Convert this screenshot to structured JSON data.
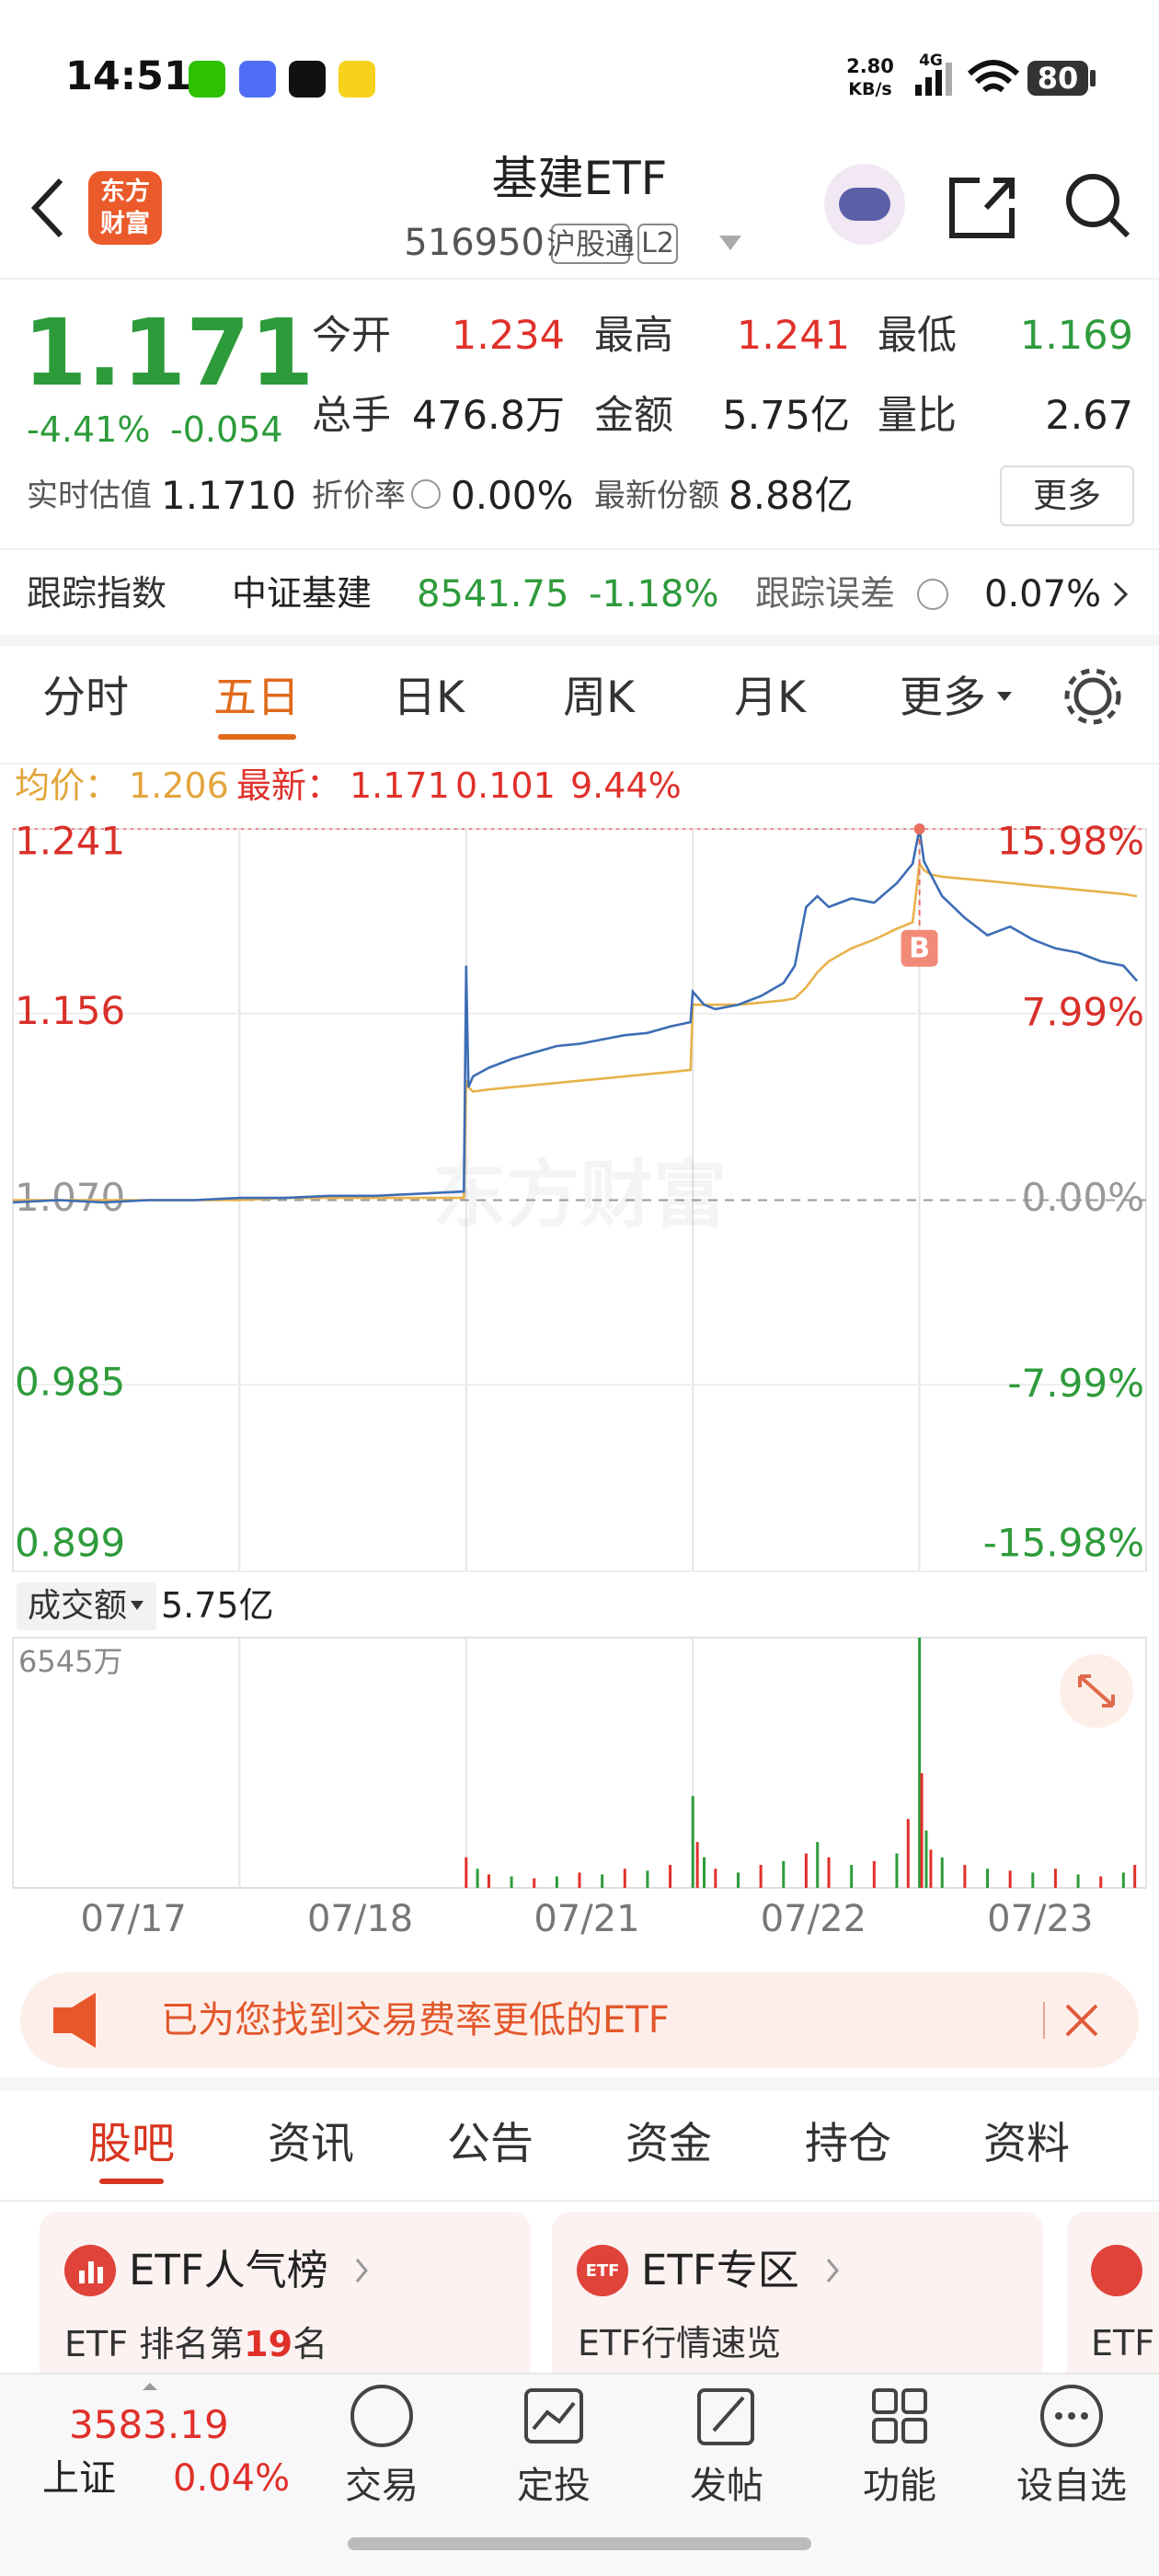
{
  "status_bar": {
    "time": "14:51",
    "net_speed": "2.80",
    "net_unit": "KB/s",
    "network": "4G",
    "battery": "80"
  },
  "header": {
    "logo_line1": "东方",
    "logo_line2": "财富",
    "title": "基建ETF",
    "code": "516950",
    "badge": "沪股通",
    "level": "L2"
  },
  "quote": {
    "price": "1.171",
    "change_pct": "-4.41%",
    "change": "-0.054",
    "stats": [
      {
        "label": "今开",
        "value": "1.234",
        "color": "#e0302a"
      },
      {
        "label": "最高",
        "value": "1.241",
        "color": "#e0302a"
      },
      {
        "label": "最低",
        "value": "1.169",
        "color": "#2e9b3b"
      },
      {
        "label": "总手",
        "value": "476.8万",
        "color": "#222222"
      },
      {
        "label": "金额",
        "value": "5.75亿",
        "color": "#222222"
      },
      {
        "label": "量比",
        "value": "2.67",
        "color": "#222222"
      }
    ],
    "extra": [
      {
        "label": "实时估值",
        "value": "1.1710"
      },
      {
        "label": "折价率",
        "value": "0.00%"
      },
      {
        "label": "最新份额",
        "value": "8.88亿"
      }
    ],
    "more": "更多"
  },
  "tracking": {
    "label": "跟踪指数",
    "index": "中证基建",
    "index_value": "8541.75",
    "index_change": "-1.18%",
    "error_label": "跟踪误差",
    "error_value": "0.07%"
  },
  "chart_tabs": {
    "items": [
      "分时",
      "五日",
      "日K",
      "周K",
      "月K",
      "更多"
    ],
    "active": 1
  },
  "chart_info": {
    "avg_label": "均价：",
    "avg": "1.206",
    "latest_label": "最新：",
    "latest": "1.171",
    "change": "0.101",
    "change_pct": "9.44%"
  },
  "watermark": "东方财富",
  "chart_data": [
    {
      "type": "line",
      "x": [
        0,
        0.2,
        0.4,
        0.6,
        0.8,
        1.0,
        1.2,
        1.4,
        1.6,
        1.8,
        1.99,
        2.0,
        2.01,
        2.03,
        2.1,
        2.2,
        2.3,
        2.4,
        2.5,
        2.6,
        2.7,
        2.8,
        2.9,
        2.99,
        3.0,
        3.05,
        3.1,
        3.2,
        3.3,
        3.4,
        3.45,
        3.5,
        3.55,
        3.6,
        3.7,
        3.8,
        3.9,
        3.97,
        4.0,
        4.02,
        4.05,
        4.1,
        4.2,
        4.3,
        4.4,
        4.5,
        4.6,
        4.7,
        4.8,
        4.9,
        4.96
      ],
      "series": [
        {
          "color": "#3d6db5",
          "values": [
            1.069,
            1.07,
            1.069,
            1.07,
            1.07,
            1.071,
            1.071,
            1.072,
            1.072,
            1.073,
            1.074,
            1.178,
            1.122,
            1.127,
            1.131,
            1.135,
            1.138,
            1.141,
            1.142,
            1.144,
            1.146,
            1.147,
            1.15,
            1.152,
            1.166,
            1.16,
            1.158,
            1.16,
            1.164,
            1.17,
            1.178,
            1.205,
            1.21,
            1.205,
            1.209,
            1.207,
            1.216,
            1.225,
            1.241,
            1.226,
            1.22,
            1.21,
            1.2,
            1.192,
            1.196,
            1.19,
            1.186,
            1.184,
            1.18,
            1.178,
            1.171
          ]
        },
        {
          "color": "#e8b24a",
          "values": [
            1.07,
            1.07,
            1.07,
            1.07,
            1.07,
            1.07,
            1.071,
            1.071,
            1.071,
            1.071,
            1.071,
            1.125,
            1.122,
            1.12,
            1.121,
            1.122,
            1.123,
            1.124,
            1.125,
            1.126,
            1.127,
            1.128,
            1.129,
            1.13,
            1.16,
            1.16,
            1.16,
            1.16,
            1.161,
            1.162,
            1.163,
            1.168,
            1.175,
            1.18,
            1.186,
            1.19,
            1.195,
            1.198,
            1.225,
            1.222,
            1.22,
            1.219,
            1.218,
            1.217,
            1.216,
            1.215,
            1.214,
            1.213,
            1.212,
            1.211,
            1.21
          ]
        }
      ],
      "xlim": [
        0,
        5
      ],
      "xticks": [
        {
          "value": 0.5,
          "label": "07/17"
        },
        {
          "value": 1.5,
          "label": "07/18"
        },
        {
          "value": 2.5,
          "label": "07/21"
        },
        {
          "value": 3.5,
          "label": "07/22"
        },
        {
          "value": 4.5,
          "label": "07/23"
        }
      ],
      "ylim": [
        0.899,
        1.241
      ],
      "yticks": [
        1.241,
        1.156,
        {
          "value": 1.07,
          "label": "1.070"
        },
        0.985,
        0.899
      ],
      "y2lim": [
        -15.98,
        15.98
      ],
      "y2ticks": [
        {
          "value": 15.98,
          "label": "15.98%"
        },
        {
          "value": 7.99,
          "label": "7.99%"
        },
        {
          "value": 0,
          "label": "0.00%"
        },
        {
          "value": -7.99,
          "label": "-7.99%"
        },
        {
          "value": -15.98,
          "label": "-15.98%"
        }
      ],
      "baseline": 1.07,
      "annotation": {
        "label": "B",
        "x": 4.0,
        "y": 1.186
      },
      "grid": true
    },
    {
      "type": "bar",
      "title": "成交额",
      "total": "5.75亿",
      "x": [
        2.0,
        2.05,
        2.1,
        2.2,
        2.3,
        2.4,
        2.5,
        2.6,
        2.7,
        2.8,
        2.9,
        3.0,
        3.02,
        3.05,
        3.1,
        3.2,
        3.3,
        3.4,
        3.5,
        3.55,
        3.6,
        3.7,
        3.8,
        3.9,
        3.95,
        4.0,
        4.01,
        4.03,
        4.05,
        4.1,
        4.2,
        4.3,
        4.4,
        4.5,
        4.6,
        4.7,
        4.8,
        4.9,
        4.95
      ],
      "values": [
        800,
        500,
        350,
        300,
        250,
        300,
        400,
        350,
        500,
        450,
        600,
        2400,
        1200,
        800,
        500,
        400,
        600,
        700,
        900,
        1200,
        800,
        600,
        700,
        900,
        1800,
        6545,
        3000,
        1500,
        1000,
        800,
        600,
        500,
        450,
        400,
        500,
        350,
        300,
        400,
        600
      ],
      "colors": [
        "#e0302a",
        "#2e9b3b"
      ],
      "xlim": [
        0,
        5
      ],
      "ylim": [
        0,
        6545
      ],
      "yticks": [
        {
          "value": 6545,
          "label": "6545万"
        }
      ]
    }
  ],
  "banner": {
    "text": "已为您找到交易费率更低的ETF"
  },
  "info_tabs": {
    "items": [
      "股吧",
      "资讯",
      "公告",
      "资金",
      "持仓",
      "资料"
    ],
    "active": 0
  },
  "cards": [
    {
      "title": "ETF人气榜",
      "sub_prefix": "ETF 排名第",
      "sub_rank": "19",
      "sub_suffix": "名"
    },
    {
      "icon": "ETF",
      "title": "ETF专区",
      "sub": "ETF行情速览"
    },
    {
      "sub": "ETF"
    }
  ],
  "bottom_nav": {
    "index_value": "3583.19",
    "index_name": "上证",
    "index_change": "0.04%",
    "items": [
      "交易",
      "定投",
      "发帖",
      "功能",
      "设自选"
    ]
  }
}
